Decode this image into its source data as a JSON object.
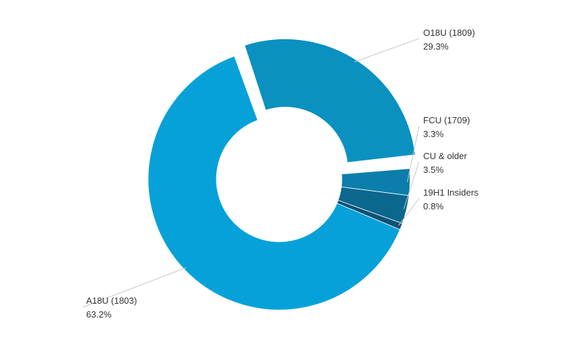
{
  "chart_data": {
    "type": "pie",
    "variant": "donut",
    "slices": [
      {
        "label": "O18U (1809)",
        "percent_label": "29.3%",
        "value": 29.3,
        "color": "#0a91c0",
        "exploded": true
      },
      {
        "label": "FCU (1709)",
        "percent_label": "3.3%",
        "value": 3.3,
        "color": "#0b7eab",
        "exploded": false
      },
      {
        "label": "CU & older",
        "percent_label": "3.5%",
        "value": 3.5,
        "color": "#0b678e",
        "exploded": false
      },
      {
        "label": "19H1 Insiders",
        "percent_label": "0.8%",
        "value": 0.8,
        "color": "#0a5273",
        "exploded": false
      },
      {
        "label": "A18U (1803)",
        "percent_label": "63.2%",
        "value": 63.2,
        "color": "#06a1d9",
        "exploded": false
      }
    ],
    "legend": "none",
    "leader_line_color": "#c8c8c8"
  }
}
